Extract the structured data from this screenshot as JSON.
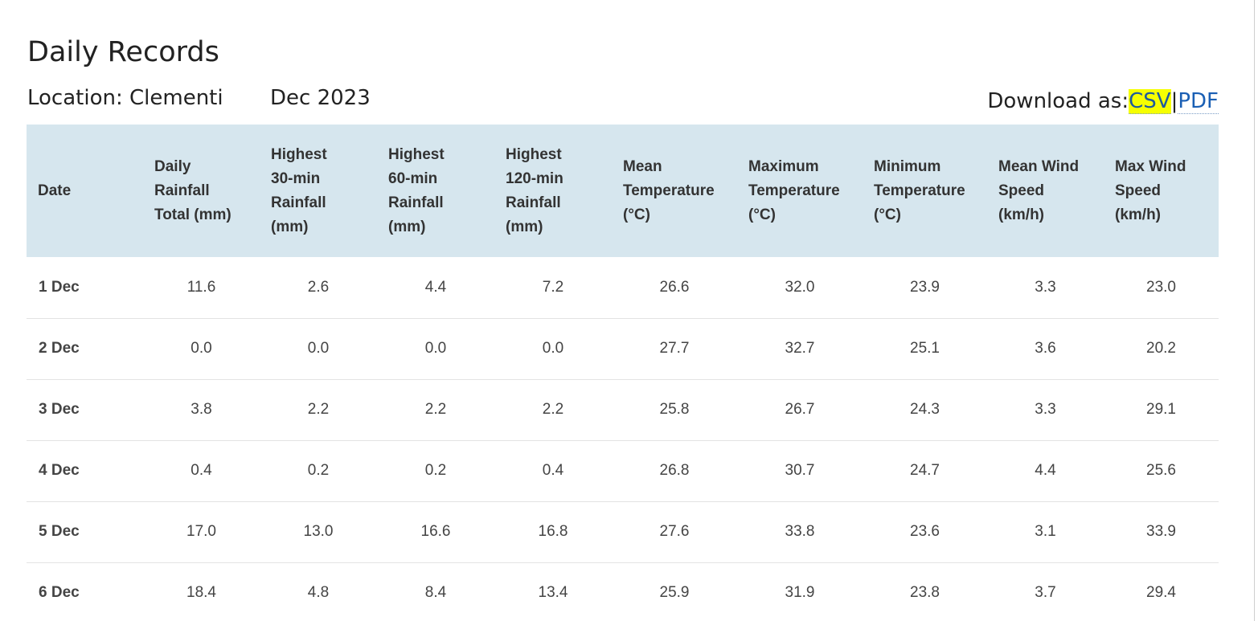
{
  "page": {
    "title": "Daily Records",
    "location": "Location: Clementi",
    "month": "Dec 2023",
    "download": {
      "label": "Download as:",
      "csv": "CSV",
      "separator": "|",
      "pdf": "PDF"
    },
    "colors": {
      "header_bg": "#d6e6ee",
      "link": "#1a5fb4",
      "highlight": "#f6ff00"
    }
  },
  "table": {
    "columns": [
      [
        "Date"
      ],
      [
        "Daily",
        "Rainfall",
        "Total (mm)"
      ],
      [
        "Highest",
        "30-min",
        "Rainfall",
        "(mm)"
      ],
      [
        "Highest",
        "60-min",
        "Rainfall",
        "(mm)"
      ],
      [
        "Highest",
        "120-min",
        "Rainfall",
        "(mm)"
      ],
      [
        "Mean",
        "Temperature",
        "(°C)"
      ],
      [
        "Maximum",
        "Temperature",
        "(°C)"
      ],
      [
        "Minimum",
        "Temperature",
        "(°C)"
      ],
      [
        "Mean Wind",
        "Speed",
        "(km/h)"
      ],
      [
        "Max Wind",
        "Speed",
        "(km/h)"
      ]
    ],
    "rows": [
      [
        "1 Dec",
        "11.6",
        "2.6",
        "4.4",
        "7.2",
        "26.6",
        "32.0",
        "23.9",
        "3.3",
        "23.0"
      ],
      [
        "2 Dec",
        "0.0",
        "0.0",
        "0.0",
        "0.0",
        "27.7",
        "32.7",
        "25.1",
        "3.6",
        "20.2"
      ],
      [
        "3 Dec",
        "3.8",
        "2.2",
        "2.2",
        "2.2",
        "25.8",
        "26.7",
        "24.3",
        "3.3",
        "29.1"
      ],
      [
        "4 Dec",
        "0.4",
        "0.2",
        "0.2",
        "0.4",
        "26.8",
        "30.7",
        "24.7",
        "4.4",
        "25.6"
      ],
      [
        "5 Dec",
        "17.0",
        "13.0",
        "16.6",
        "16.8",
        "27.6",
        "33.8",
        "23.6",
        "3.1",
        "33.9"
      ],
      [
        "6 Dec",
        "18.4",
        "4.8",
        "8.4",
        "13.4",
        "25.9",
        "31.9",
        "23.8",
        "3.7",
        "29.4"
      ]
    ]
  }
}
